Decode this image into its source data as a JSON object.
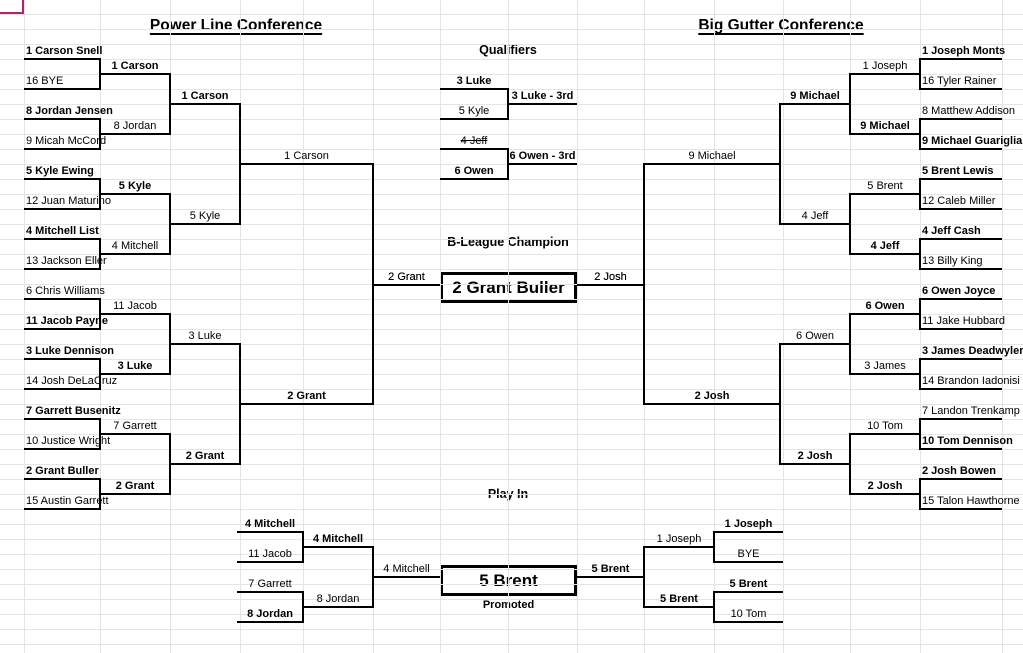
{
  "colors": {
    "background": "#ffffff",
    "grid": "#e4e4e4",
    "line": "#000000",
    "selection": "#b02470"
  },
  "conferences": {
    "left": {
      "title": "Power Line Conference",
      "seeds": [
        {
          "name": "1 Carson Snell",
          "bold": true
        },
        {
          "name": "16 BYE",
          "bold": false
        },
        {
          "name": "8 Jordan Jensen",
          "bold": true
        },
        {
          "name": "9 Micah McCord",
          "bold": false
        },
        {
          "name": "5 Kyle Ewing",
          "bold": true
        },
        {
          "name": "12 Juan Maturino",
          "bold": false
        },
        {
          "name": "4 Mitchell List",
          "bold": true
        },
        {
          "name": "13 Jackson Eller",
          "bold": false
        },
        {
          "name": "6 Chris Williams",
          "bold": false
        },
        {
          "name": "11 Jacob Payne",
          "bold": true
        },
        {
          "name": "3 Luke Dennison",
          "bold": true
        },
        {
          "name": "14 Josh DeLaCruz",
          "bold": false
        },
        {
          "name": "7 Garrett Busenitz",
          "bold": true
        },
        {
          "name": "10 Justice Wright",
          "bold": false
        },
        {
          "name": "2 Grant Buller",
          "bold": true
        },
        {
          "name": "15 Austin Garrett",
          "bold": false
        }
      ],
      "round1_winners": [
        {
          "name": "1 Carson",
          "bold": true
        },
        {
          "name": "8 Jordan",
          "bold": false
        },
        {
          "name": "5 Kyle",
          "bold": true
        },
        {
          "name": "4 Mitchell",
          "bold": false
        },
        {
          "name": "11 Jacob",
          "bold": false
        },
        {
          "name": "3 Luke",
          "bold": true
        },
        {
          "name": "7 Garrett",
          "bold": false
        },
        {
          "name": "2 Grant",
          "bold": true
        }
      ],
      "quarterfinal_winners": [
        {
          "name": "1 Carson",
          "bold": true
        },
        {
          "name": "5 Kyle",
          "bold": false
        },
        {
          "name": "3 Luke",
          "bold": false
        },
        {
          "name": "2 Grant",
          "bold": true
        }
      ],
      "semifinal_winners": [
        {
          "name": "1 Carson",
          "bold": false
        },
        {
          "name": "2 Grant",
          "bold": true
        }
      ],
      "finalist": {
        "name": "2 Grant",
        "bold": false
      }
    },
    "right": {
      "title": "Big Gutter Conference",
      "seeds": [
        {
          "name": "1 Joseph Monts",
          "bold": true
        },
        {
          "name": "16 Tyler Rainer",
          "bold": false
        },
        {
          "name": "8 Matthew Addison",
          "bold": false
        },
        {
          "name": "9 Michael Guariglia",
          "bold": true
        },
        {
          "name": "5 Brent Lewis",
          "bold": true
        },
        {
          "name": "12 Caleb Miller",
          "bold": false
        },
        {
          "name": "4 Jeff Cash",
          "bold": true
        },
        {
          "name": "13 Billy King",
          "bold": false
        },
        {
          "name": "6 Owen Joyce",
          "bold": true
        },
        {
          "name": "11 Jake Hubbard",
          "bold": false
        },
        {
          "name": "3 James Deadwyler",
          "bold": true
        },
        {
          "name": "14 Brandon Iadonisi",
          "bold": false
        },
        {
          "name": "7 Landon Trenkamp",
          "bold": false
        },
        {
          "name": "10 Tom Dennison",
          "bold": true
        },
        {
          "name": "2 Josh Bowen",
          "bold": true
        },
        {
          "name": "15 Talon Hawthorne",
          "bold": false
        }
      ],
      "round1_winners": [
        {
          "name": "1 Joseph",
          "bold": false
        },
        {
          "name": "9 Michael",
          "bold": true
        },
        {
          "name": "5 Brent",
          "bold": false
        },
        {
          "name": "4 Jeff",
          "bold": true
        },
        {
          "name": "6 Owen",
          "bold": true
        },
        {
          "name": "3 James",
          "bold": false
        },
        {
          "name": "10 Tom",
          "bold": false
        },
        {
          "name": "2 Josh",
          "bold": true
        }
      ],
      "quarterfinal_winners": [
        {
          "name": "9 Michael",
          "bold": true
        },
        {
          "name": "4 Jeff",
          "bold": false
        },
        {
          "name": "6 Owen",
          "bold": false
        },
        {
          "name": "2 Josh",
          "bold": true
        }
      ],
      "semifinal_winners": [
        {
          "name": "9 Michael",
          "bold": false
        },
        {
          "name": "2 Josh",
          "bold": true
        }
      ],
      "finalist": {
        "name": "2 Josh",
        "bold": false
      }
    }
  },
  "qualifiers": {
    "title": "Qualifiers",
    "matches": [
      {
        "top": {
          "name": "3 Luke",
          "bold": true,
          "strike": false
        },
        "bottom": {
          "name": "5 Kyle",
          "bold": false,
          "strike": false
        },
        "winner": {
          "name": "3 Luke - 3rd",
          "bold": true
        }
      },
      {
        "top": {
          "name": "4 Jeff",
          "bold": false,
          "strike": true
        },
        "bottom": {
          "name": "6 Owen",
          "bold": true,
          "strike": false
        },
        "winner": {
          "name": "6 Owen - 3rd",
          "bold": true
        }
      }
    ]
  },
  "champion": {
    "label": "B-League Champion",
    "name": "2 Grant Buller",
    "left_feed": {
      "name": "2 Grant",
      "bold": false
    },
    "right_feed": {
      "name": "2 Josh",
      "bold": false
    }
  },
  "play_in": {
    "title": "Play In",
    "left": {
      "seeds": [
        {
          "name": "4 Mitchell",
          "bold": true
        },
        {
          "name": "11 Jacob",
          "bold": false
        },
        {
          "name": "7 Garrett",
          "bold": false
        },
        {
          "name": "8 Jordan",
          "bold": true
        }
      ],
      "winners": [
        {
          "name": "4 Mitchell",
          "bold": true
        },
        {
          "name": "8 Jordan",
          "bold": false
        }
      ],
      "finalist": {
        "name": "4 Mitchell",
        "bold": false
      }
    },
    "right": {
      "seeds": [
        {
          "name": "1 Joseph",
          "bold": true
        },
        {
          "name": "BYE",
          "bold": false
        },
        {
          "name": "5 Brent",
          "bold": true
        },
        {
          "name": "10 Tom",
          "bold": false
        }
      ],
      "winners": [
        {
          "name": "1 Joseph",
          "bold": false
        },
        {
          "name": "5 Brent",
          "bold": true
        }
      ],
      "finalist": {
        "name": "5 Brent",
        "bold": true
      }
    },
    "box": {
      "name": "5 Brent",
      "sub": "Promoted"
    }
  }
}
